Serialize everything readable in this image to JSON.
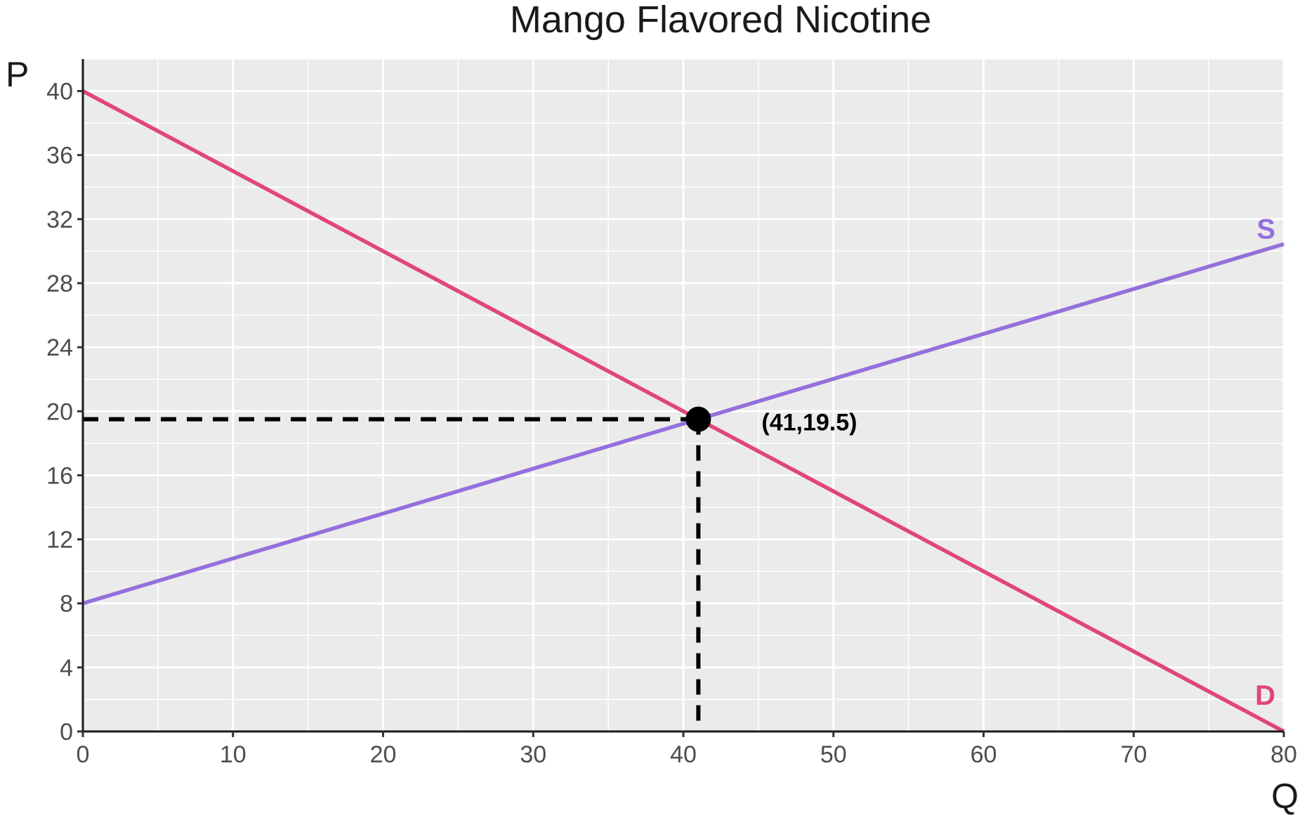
{
  "chart_data": {
    "type": "line",
    "title": "Mango Flavored Nicotine",
    "xlabel": "Q",
    "ylabel": "P",
    "xlim": [
      0,
      80
    ],
    "ylim": [
      0,
      42
    ],
    "x_ticks": [
      0,
      10,
      20,
      30,
      40,
      50,
      60,
      70,
      80
    ],
    "y_ticks": [
      0,
      4,
      8,
      12,
      16,
      20,
      24,
      28,
      32,
      36,
      40
    ],
    "grid": true,
    "background": "#ebebeb",
    "series": [
      {
        "name": "S",
        "color": "#9370DB",
        "points": [
          [
            0,
            8
          ],
          [
            80,
            30.44
          ]
        ]
      },
      {
        "name": "D",
        "color": "#E0457B",
        "points": [
          [
            0,
            40
          ],
          [
            80,
            0
          ]
        ]
      }
    ],
    "equilibrium": {
      "x": 41,
      "y": 19.5,
      "label": "(41,19.5)",
      "guides": "dashed"
    }
  }
}
